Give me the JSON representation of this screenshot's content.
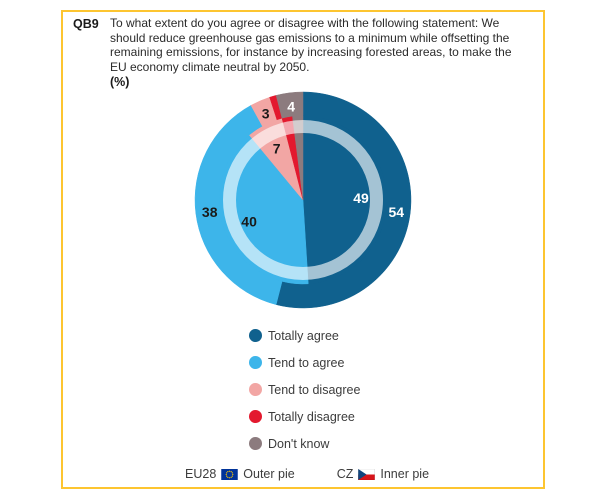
{
  "frame": {
    "border_color": "#FDC530",
    "background": "#FFFFFF"
  },
  "header": {
    "question_id": "QB9",
    "question_lines": [
      "To what extent do you agree or disagree with the following statement: We",
      "should reduce greenhouse gas emissions to a minimum while offsetting the",
      "remaining emissions, for instance by increasing forested areas, to make the",
      "EU economy climate neutral by 2050."
    ],
    "unit_label": "(%)"
  },
  "chart_data": {
    "type": "pie",
    "variant": "concentric-double-pie",
    "title": "QB9 To what extent do you agree or disagree with the following statement: We should reduce greenhouse gas emissions to a minimum while offsetting the remaining emissions, for instance by increasing forested areas, to make the EU economy climate neutral by 2050.",
    "unit": "%",
    "start_angle_deg": 0,
    "direction": "clockwise",
    "categories": [
      "Totally agree",
      "Tend to agree",
      "Tend to disagree",
      "Totally disagree",
      "Don't know"
    ],
    "colors": [
      "#10618E",
      "#3DB5EA",
      "#F2A6A4",
      "#E3192E",
      "#8C7B7E"
    ],
    "ring_overlay_color": "rgba(255,255,255,0.62)",
    "series": [
      {
        "name": "EU28",
        "ring": "outer",
        "values": [
          54,
          38,
          3,
          1,
          4
        ],
        "labels_shown": [
          true,
          true,
          true,
          false,
          true
        ],
        "label_colors": [
          "#FFFFFF",
          "#1A1A1A",
          "#1A1A1A",
          "#1A1A1A",
          "#FFFFFF"
        ]
      },
      {
        "name": "CZ",
        "ring": "inner",
        "values": [
          49,
          40,
          7,
          2,
          2
        ],
        "labels_shown": [
          true,
          true,
          true,
          false,
          false
        ],
        "label_colors": [
          "#FFFFFF",
          "#1A1A1A",
          "#1A1A1A",
          "#1A1A1A",
          "#FFFFFF"
        ]
      }
    ],
    "legend_entries": [
      "Totally agree",
      "Tend to agree",
      "Tend to disagree",
      "Totally disagree",
      "Don't know"
    ],
    "legend_position": "below-chart"
  },
  "footer": {
    "eu_label": "EU28",
    "outer_pie_label": "Outer pie",
    "cz_label": "CZ",
    "inner_pie_label": "Inner pie"
  }
}
